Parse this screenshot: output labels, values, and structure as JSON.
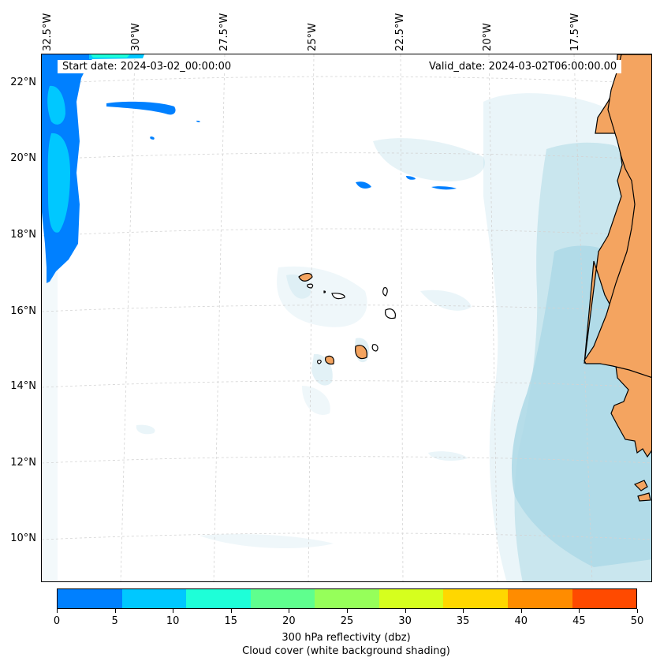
{
  "map": {
    "start_date": "Start date: 2024-03-02_00:00:00",
    "valid_date": "Valid_date: 2024-03-02T06:00:00.00",
    "lon_labels": [
      "32.5°W",
      "30°W",
      "27.5°W",
      "25°W",
      "22.5°W",
      "20°W",
      "17.5°W"
    ],
    "lat_labels": [
      "22°N",
      "20°N",
      "18°N",
      "16°N",
      "14°N",
      "12°N",
      "10°N"
    ],
    "colors": {
      "land": "#f4a460",
      "cloud": "#add8e6",
      "coastline": "#000000",
      "gridline": "#d3d3d3"
    }
  },
  "colorbar": {
    "ticks": [
      "0",
      "5",
      "10",
      "15",
      "20",
      "25",
      "30",
      "35",
      "40",
      "45",
      "50"
    ],
    "colors": [
      "#0080ff",
      "#00c8ff",
      "#1effd8",
      "#5fff8e",
      "#96ff5a",
      "#d6ff1e",
      "#ffd700",
      "#ff8c00",
      "#ff4a00"
    ],
    "label": "300 hPa reflectivity (dbz)",
    "sublabel": "Cloud cover (white background shading)"
  }
}
